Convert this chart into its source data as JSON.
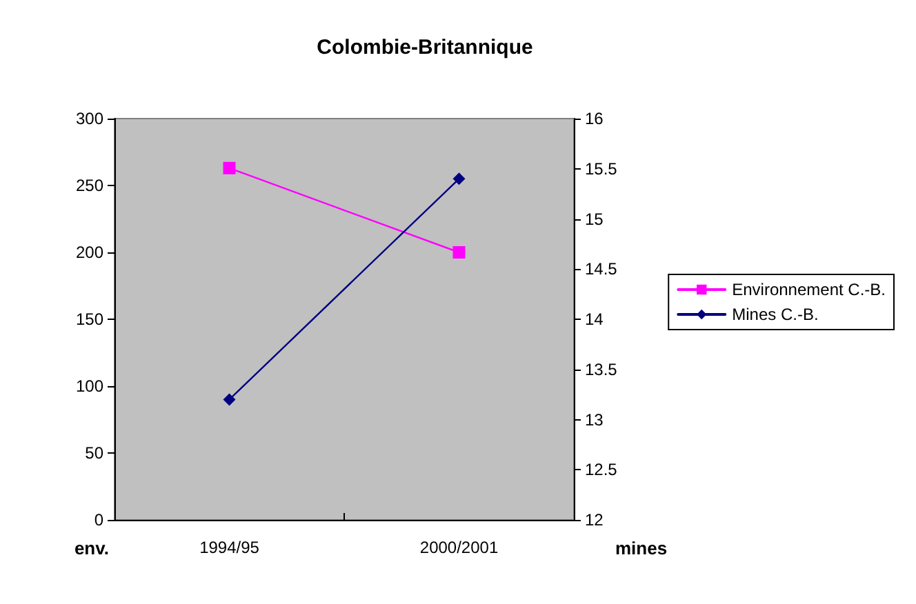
{
  "chart_data": {
    "type": "line",
    "title": "Colombie-Britannique",
    "ylabel": "env.",
    "y2label": "mines",
    "categories": [
      "1994/95",
      "2000/2001"
    ],
    "series": [
      {
        "name": "Environnement C.-B.",
        "color": "#ff00ff",
        "marker": "square",
        "values": [
          263,
          200
        ]
      },
      {
        "name": "Mines C.-B.",
        "color": "#000080",
        "marker": "diamond",
        "axis": "y2",
        "values": [
          13.2,
          15.4
        ]
      }
    ],
    "ylim": [
      0,
      300
    ],
    "yticks": [
      0,
      50,
      100,
      150,
      200,
      250,
      300
    ],
    "y2lim": [
      12,
      16
    ],
    "y2ticks": [
      12,
      12.5,
      13,
      13.5,
      14,
      14.5,
      15,
      15.5,
      16
    ],
    "grid": false,
    "legend": "right"
  }
}
